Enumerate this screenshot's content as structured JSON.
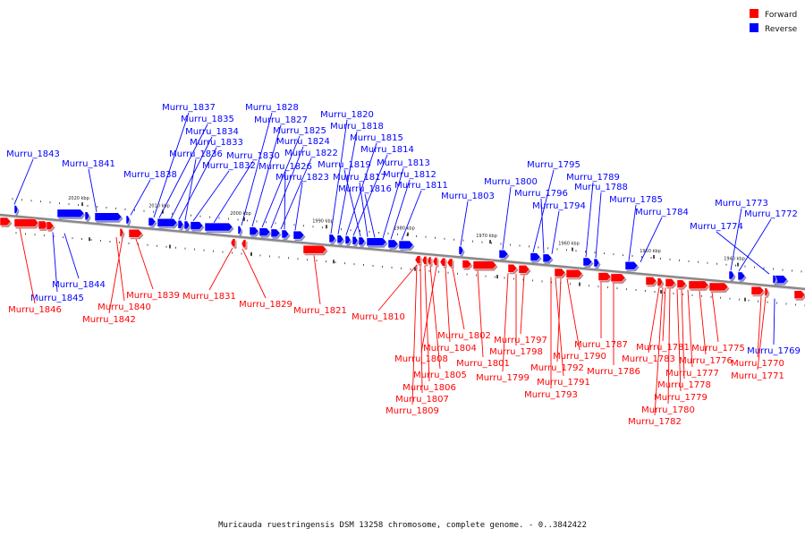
{
  "caption": "Muricauda ruestringensis DSM 13258 chromosome, complete genome. - 0..3842422",
  "legend": [
    {
      "label": "Forward",
      "color": "#ff0000"
    },
    {
      "label": "Reverse",
      "color": "#0000ff"
    }
  ],
  "colors": {
    "forward": "#ff0000",
    "reverse": "#0000ff",
    "backbone": "#888888"
  },
  "chart_data": {
    "type": "linear-genome-map",
    "scale_labels": [
      "2020 kbp",
      "2010 kbp",
      "2000 kbp",
      "1990 kbp",
      "1980 kbp",
      "1970 kbp",
      "1960 kbp",
      "1950 kbp",
      "1940 kbp"
    ],
    "reverse_genes": [
      "Murru_1843",
      "Murru_1841",
      "Murru_1838",
      "Murru_1837",
      "Murru_1835",
      "Murru_1834",
      "Murru_1833",
      "Murru_1836",
      "Murru_1832",
      "Murru_1830",
      "Murru_1828",
      "Murru_1827",
      "Murru_1825",
      "Murru_1824",
      "Murru_1822",
      "Murru_1826",
      "Murru_1823",
      "Murru_1820",
      "Murru_1818",
      "Murru_1815",
      "Murru_1814",
      "Murru_1819",
      "Murru_1817",
      "Murru_1816",
      "Murru_1813",
      "Murru_1812",
      "Murru_1811",
      "Murru_1803",
      "Murru_1800",
      "Murru_1795",
      "Murru_1796",
      "Murru_1794",
      "Murru_1789",
      "Murru_1788",
      "Murru_1785",
      "Murru_1784",
      "Murru_1773",
      "Murru_1772",
      "Murru_1774",
      "Murru_1844",
      "Murru_1845",
      "Murru_1769"
    ],
    "forward_genes": [
      "Murru_1846",
      "Murru_1840",
      "Murru_1842",
      "Murru_1839",
      "Murru_1831",
      "Murru_1829",
      "Murru_1821",
      "Murru_1810",
      "Murru_1802",
      "Murru_1804",
      "Murru_1808",
      "Murru_1805",
      "Murru_1806",
      "Murru_1807",
      "Murru_1809",
      "Murru_1801",
      "Murru_1797",
      "Murru_1798",
      "Murru_1799",
      "Murru_1792",
      "Murru_1790",
      "Murru_1791",
      "Murru_1793",
      "Murru_1787",
      "Murru_1786",
      "Murru_1781",
      "Murru_1783",
      "Murru_1775",
      "Murru_1776",
      "Murru_1777",
      "Murru_1778",
      "Murru_1779",
      "Murru_1780",
      "Murru_1782",
      "Murru_1770",
      "Murru_1771"
    ]
  }
}
